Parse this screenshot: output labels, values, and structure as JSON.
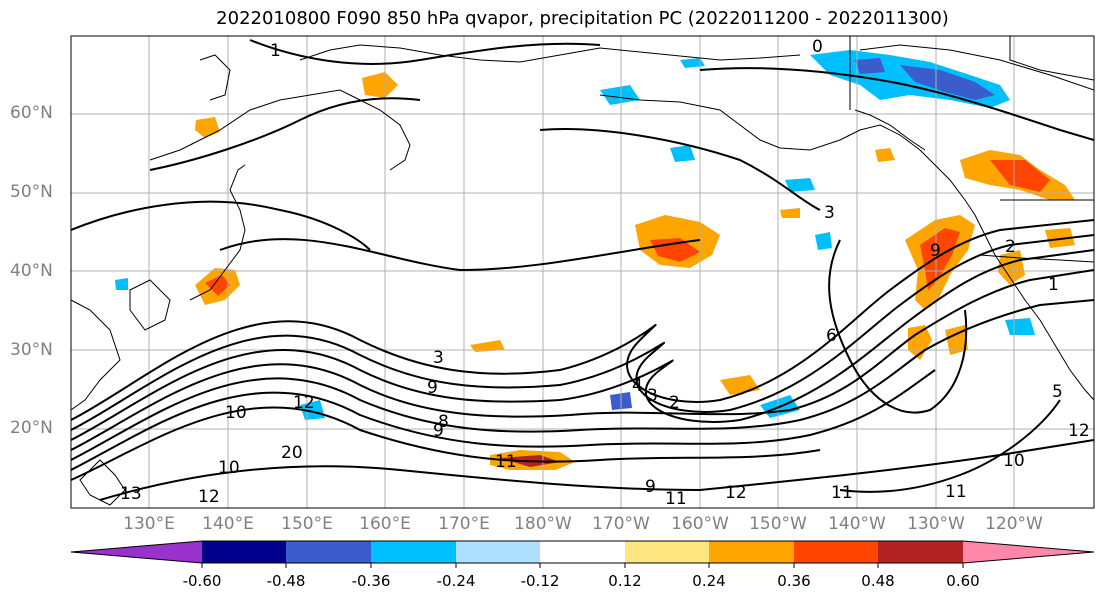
{
  "title": "2022010800 F090 850 hPa qvapor, precipitation PC (2022011200 - 2022011300)",
  "lat_labels": [
    "60°N",
    "50°N",
    "40°N",
    "30°N",
    "20°N"
  ],
  "lon_labels": [
    "130°E",
    "140°E",
    "150°E",
    "160°E",
    "170°E",
    "180°W",
    "170°W",
    "160°W",
    "150°W",
    "140°W",
    "130°W",
    "120°W"
  ],
  "contour_labels": [
    "0",
    "1",
    "3",
    "3",
    "4",
    "3",
    "2",
    "9",
    "9",
    "10",
    "12",
    "10",
    "20",
    "12",
    "11",
    "13",
    "6",
    "9",
    "11",
    "12",
    "11",
    "10",
    "11",
    "1",
    "2",
    "5",
    "8",
    "9",
    "12"
  ],
  "colorbar": {
    "ticks": [
      "-0.60",
      "-0.48",
      "-0.36",
      "-0.24",
      "-0.12",
      "0.12",
      "0.24",
      "0.36",
      "0.48",
      "0.60"
    ],
    "colors": [
      "#9932cc",
      "#00008b",
      "#3a5ccc",
      "#00bfff",
      "#b0e0ff",
      "#ffffff",
      "#ffe680",
      "#ffa500",
      "#ff4500",
      "#b22222",
      "#ff88aa"
    ]
  }
}
